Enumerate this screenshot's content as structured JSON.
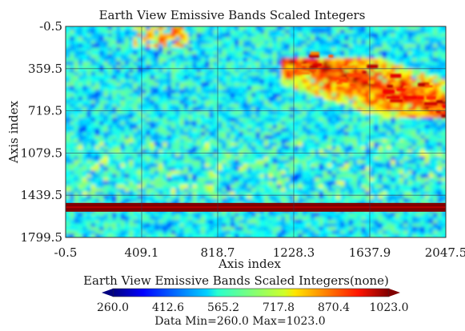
{
  "chart_data": {
    "type": "heatmap",
    "title": "Earth View Emissive Bands Scaled Integers",
    "xlabel": "Axis index",
    "ylabel": "Axis index",
    "x_ticks": [
      "-0.5",
      "409.1",
      "818.7",
      "1228.3",
      "1637.9",
      "2047.5"
    ],
    "y_ticks": [
      "-0.5",
      "359.5",
      "719.5",
      "1079.5",
      "1439.5",
      "1799.5"
    ],
    "xlim": [
      -0.5,
      2047.5
    ],
    "ylim": [
      -0.5,
      1799.5
    ],
    "grid": true,
    "colorbar": {
      "title": "Earth View Emissive Bands Scaled Integers(none)",
      "ticks": [
        "260.0",
        "412.6",
        "565.2",
        "717.8",
        "870.4",
        "1023.0"
      ],
      "range": [
        260.0,
        1023.0
      ],
      "colormap": "jet"
    },
    "stats_text": "Data Min=260.0 Max=1023.0",
    "features": {
      "background_value": 560,
      "saturated_stripe": {
        "value": 1023.0,
        "rows": [
          1505,
          1580
        ]
      },
      "warm_band_rows": [
        260,
        760
      ],
      "warm_band_cols": [
        1150,
        2047
      ]
    }
  }
}
